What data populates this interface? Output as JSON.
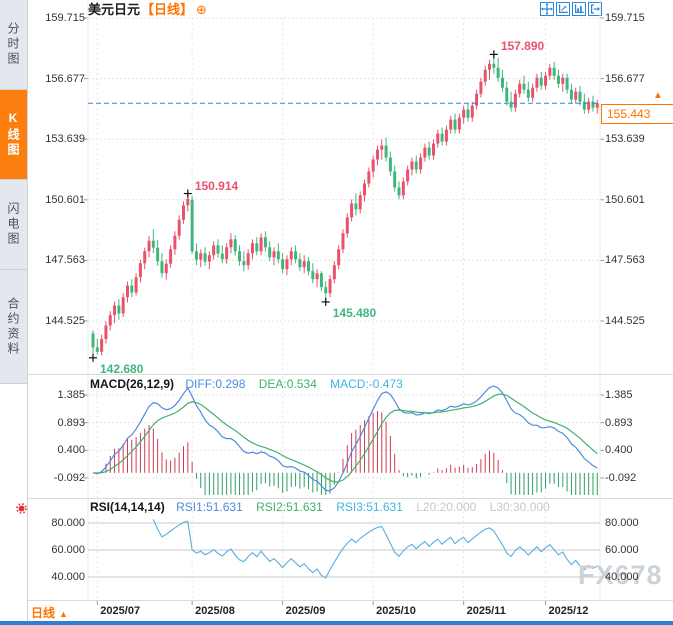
{
  "header": {
    "title": "美元日元",
    "period_tag": "【日线】",
    "circle_plus_glyph": "⊕"
  },
  "toolbar": {
    "buttons": [
      "pan-crosshair",
      "axis-scale",
      "bar-chart",
      "exit-chart"
    ]
  },
  "sidebar": {
    "tabs": [
      {
        "label": "分时图",
        "active": false
      },
      {
        "label": "K线图",
        "active": true
      },
      {
        "label": "闪电图",
        "active": false
      },
      {
        "label": "合约资料",
        "active": false
      }
    ]
  },
  "macd_header": {
    "name": "MACD(26,12,9)",
    "diff": "DIFF:0.298",
    "dea": "DEA:0.534",
    "macd": "MACD:-0.473"
  },
  "rsi_header": {
    "name": "RSI(14,14,14)",
    "rsi1": "RSI1:51.631",
    "rsi2": "RSI2:51.631",
    "rsi3": "RSI3:51.631",
    "l20": "L20:20.000",
    "l30": "L30:30.000"
  },
  "footer": {
    "period": "日线",
    "arrow": "▲"
  },
  "price_tag": {
    "value": "155.443",
    "arrow": "▲"
  },
  "watermark": "FX678",
  "colors": {
    "up": "#e8526b",
    "down": "#3eb77e",
    "diff_line": "#4f8be0",
    "dea_line": "#41b06e",
    "macd_value_text": "#3fb5e0",
    "rsi_line": "#58aede",
    "accent_orange": "#ff7300",
    "icon_blue": "#2b87d8",
    "grid": "#e4e4e4",
    "rsi_grid": "#c9c9c9",
    "separator": "#d9d9d9",
    "dashed_price": "#2e86de",
    "axis_text": "#333333",
    "annotation_high": "#e8526b",
    "annotation_low": "#3eb77e",
    "watermark": "#ccd2da",
    "marker_cross": "#111111"
  },
  "chart_data": {
    "type": "candlestick",
    "title": "美元日元 日线",
    "interval": "日线",
    "price_axis": [
      159.715,
      156.677,
      153.639,
      150.601,
      147.563,
      144.525
    ],
    "x_tick_labels": [
      "2025/07",
      "2025/08",
      "2025/09",
      "2025/10",
      "2025/11",
      "2025/12"
    ],
    "x_tick_indices": [
      1,
      23,
      44,
      65,
      86,
      105
    ],
    "current_price": 155.443,
    "markers": [
      {
        "index": 0,
        "price": 142.68,
        "label": "142.680",
        "dir": "low"
      },
      {
        "index": 22,
        "price": 150.914,
        "label": "150.914",
        "dir": "high"
      },
      {
        "index": 54,
        "price": 145.48,
        "label": "145.480",
        "dir": "low"
      },
      {
        "index": 93,
        "price": 157.89,
        "label": "157.890",
        "dir": "high"
      }
    ],
    "indicators": {
      "macd_params": [
        26,
        12,
        9
      ],
      "macd_axis": [
        1.385,
        0.893,
        0.4,
        -0.092
      ],
      "macd_last": {
        "diff": 0.298,
        "dea": 0.534,
        "macd": -0.473
      },
      "rsi_params": [
        14,
        14,
        14
      ],
      "rsi_axis": [
        80,
        60,
        40
      ],
      "rsi_last": {
        "rsi1": 51.631,
        "rsi2": 51.631,
        "rsi3": 51.631,
        "l20": 20.0,
        "l30": 30.0
      }
    },
    "candles": [
      [
        143.9,
        144.05,
        142.68,
        143.2
      ],
      [
        143.2,
        143.62,
        142.85,
        142.98
      ],
      [
        142.98,
        143.85,
        142.8,
        143.62
      ],
      [
        143.62,
        144.52,
        143.4,
        144.3
      ],
      [
        144.3,
        145.02,
        144.05,
        144.82
      ],
      [
        144.82,
        145.5,
        144.42,
        145.3
      ],
      [
        145.3,
        145.62,
        144.58,
        144.9
      ],
      [
        144.9,
        145.92,
        144.72,
        145.72
      ],
      [
        145.72,
        146.5,
        145.45,
        146.3
      ],
      [
        146.3,
        146.62,
        145.72,
        145.95
      ],
      [
        145.95,
        146.92,
        145.8,
        146.72
      ],
      [
        146.72,
        147.6,
        146.45,
        147.42
      ],
      [
        147.42,
        148.2,
        147.12,
        148.02
      ],
      [
        148.02,
        148.8,
        147.72,
        148.55
      ],
      [
        148.55,
        149.12,
        147.92,
        148.2
      ],
      [
        148.2,
        148.6,
        147.3,
        147.52
      ],
      [
        147.52,
        147.92,
        146.7,
        146.92
      ],
      [
        146.92,
        147.62,
        146.6,
        147.4
      ],
      [
        147.4,
        148.32,
        147.2,
        148.12
      ],
      [
        148.12,
        149.02,
        147.85,
        148.8
      ],
      [
        148.8,
        149.82,
        148.6,
        149.6
      ],
      [
        149.6,
        150.52,
        149.4,
        150.32
      ],
      [
        150.32,
        150.914,
        150.02,
        150.65
      ],
      [
        150.6,
        150.8,
        147.9,
        148.02
      ],
      [
        148.02,
        148.42,
        147.32,
        147.6
      ],
      [
        147.6,
        148.12,
        147.22,
        147.92
      ],
      [
        147.92,
        148.22,
        147.3,
        147.5
      ],
      [
        147.5,
        148.02,
        147.12,
        147.82
      ],
      [
        147.82,
        148.52,
        147.6,
        148.32
      ],
      [
        148.32,
        148.62,
        147.7,
        147.9
      ],
      [
        147.9,
        148.32,
        147.42,
        147.62
      ],
      [
        147.62,
        148.42,
        147.4,
        148.22
      ],
      [
        148.22,
        148.92,
        147.92,
        148.62
      ],
      [
        148.62,
        148.82,
        147.8,
        148.02
      ],
      [
        148.02,
        148.32,
        147.3,
        147.52
      ],
      [
        147.52,
        148.02,
        147.02,
        147.32
      ],
      [
        147.32,
        148.12,
        147.1,
        147.92
      ],
      [
        147.92,
        148.62,
        147.62,
        148.42
      ],
      [
        148.42,
        148.72,
        147.82,
        148.02
      ],
      [
        148.02,
        148.92,
        147.82,
        148.72
      ],
      [
        148.72,
        149.02,
        148.0,
        148.22
      ],
      [
        148.22,
        148.52,
        147.52,
        147.72
      ],
      [
        147.72,
        148.22,
        147.32,
        148.02
      ],
      [
        148.02,
        148.42,
        147.42,
        147.62
      ],
      [
        147.62,
        147.92,
        146.92,
        147.12
      ],
      [
        147.12,
        147.82,
        146.82,
        147.62
      ],
      [
        147.62,
        148.22,
        147.32,
        148.02
      ],
      [
        148.02,
        148.32,
        147.42,
        147.62
      ],
      [
        147.62,
        147.92,
        147.02,
        147.22
      ],
      [
        147.22,
        147.82,
        146.92,
        147.52
      ],
      [
        147.52,
        147.72,
        146.82,
        147.02
      ],
      [
        147.02,
        147.42,
        146.42,
        146.62
      ],
      [
        146.62,
        147.12,
        146.22,
        146.92
      ],
      [
        146.92,
        147.02,
        146.02,
        146.22
      ],
      [
        146.22,
        146.52,
        145.48,
        145.92
      ],
      [
        145.92,
        146.82,
        145.72,
        146.62
      ],
      [
        146.62,
        147.52,
        146.42,
        147.32
      ],
      [
        147.32,
        148.32,
        147.12,
        148.12
      ],
      [
        148.12,
        149.12,
        147.92,
        148.92
      ],
      [
        148.92,
        149.92,
        148.72,
        149.72
      ],
      [
        149.72,
        150.62,
        149.52,
        150.42
      ],
      [
        150.42,
        150.92,
        149.82,
        150.12
      ],
      [
        150.12,
        151.02,
        149.92,
        150.82
      ],
      [
        150.82,
        151.62,
        150.52,
        151.42
      ],
      [
        151.42,
        152.22,
        151.22,
        152.02
      ],
      [
        152.02,
        152.82,
        151.72,
        152.62
      ],
      [
        152.62,
        153.32,
        152.32,
        153.12
      ],
      [
        153.12,
        153.62,
        152.62,
        153.32
      ],
      [
        153.32,
        153.72,
        152.52,
        152.72
      ],
      [
        152.72,
        153.02,
        151.82,
        152.02
      ],
      [
        152.02,
        152.32,
        151.02,
        151.22
      ],
      [
        151.22,
        151.52,
        150.62,
        150.82
      ],
      [
        150.82,
        151.72,
        150.62,
        151.52
      ],
      [
        151.52,
        152.32,
        151.32,
        152.12
      ],
      [
        152.12,
        152.72,
        151.82,
        152.52
      ],
      [
        152.52,
        152.82,
        151.92,
        152.12
      ],
      [
        152.12,
        152.92,
        151.92,
        152.72
      ],
      [
        152.72,
        153.42,
        152.52,
        153.22
      ],
      [
        153.22,
        153.52,
        152.62,
        152.82
      ],
      [
        152.82,
        153.62,
        152.62,
        153.42
      ],
      [
        153.42,
        154.12,
        153.22,
        153.92
      ],
      [
        153.92,
        154.22,
        153.32,
        153.52
      ],
      [
        153.52,
        154.32,
        153.32,
        154.12
      ],
      [
        154.12,
        154.82,
        153.92,
        154.62
      ],
      [
        154.62,
        154.92,
        153.92,
        154.12
      ],
      [
        154.12,
        154.92,
        153.92,
        154.72
      ],
      [
        154.72,
        155.32,
        154.42,
        155.12
      ],
      [
        155.12,
        155.42,
        154.52,
        154.72
      ],
      [
        154.72,
        155.52,
        154.52,
        155.32
      ],
      [
        155.32,
        156.12,
        155.12,
        155.92
      ],
      [
        155.92,
        156.72,
        155.72,
        156.52
      ],
      [
        156.52,
        157.32,
        156.32,
        157.12
      ],
      [
        157.12,
        157.62,
        156.62,
        157.42
      ],
      [
        157.42,
        157.89,
        156.92,
        157.22
      ],
      [
        157.22,
        157.72,
        156.52,
        156.72
      ],
      [
        156.72,
        157.12,
        156.02,
        156.22
      ],
      [
        156.22,
        156.52,
        155.32,
        155.52
      ],
      [
        155.52,
        156.02,
        155.02,
        155.22
      ],
      [
        155.22,
        156.12,
        155.02,
        155.92
      ],
      [
        155.92,
        156.62,
        155.72,
        156.42
      ],
      [
        156.42,
        156.82,
        155.92,
        156.12
      ],
      [
        156.12,
        156.52,
        155.52,
        155.72
      ],
      [
        155.72,
        156.42,
        155.52,
        156.22
      ],
      [
        156.22,
        156.92,
        156.02,
        156.72
      ],
      [
        156.72,
        157.02,
        156.12,
        156.32
      ],
      [
        156.32,
        157.02,
        156.12,
        156.82
      ],
      [
        156.82,
        157.42,
        156.62,
        157.22
      ],
      [
        157.22,
        157.52,
        156.62,
        156.82
      ],
      [
        156.82,
        157.12,
        156.22,
        156.42
      ],
      [
        156.42,
        156.92,
        156.02,
        156.72
      ],
      [
        156.72,
        156.92,
        155.92,
        156.12
      ],
      [
        156.12,
        156.42,
        155.42,
        155.62
      ],
      [
        155.62,
        156.22,
        155.42,
        156.02
      ],
      [
        156.02,
        156.32,
        155.32,
        155.52
      ],
      [
        155.52,
        155.92,
        154.92,
        155.12
      ],
      [
        155.12,
        155.72,
        154.92,
        155.52
      ],
      [
        155.52,
        155.82,
        155.02,
        155.22
      ],
      [
        155.22,
        155.62,
        154.92,
        155.443
      ]
    ]
  }
}
